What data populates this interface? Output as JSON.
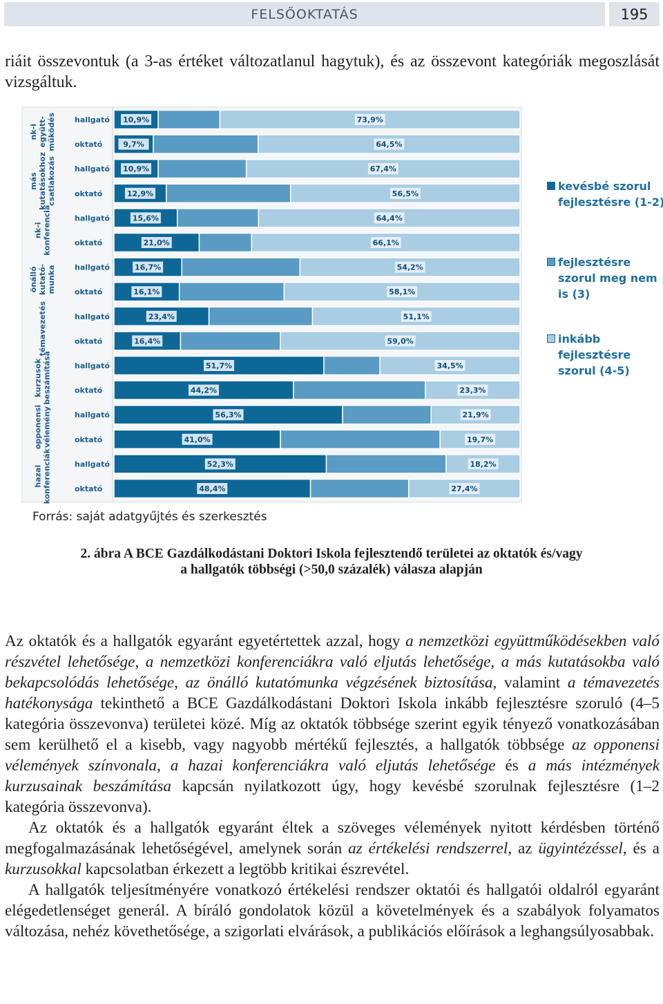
{
  "header": {
    "title": "FELSŐOKTATÁS",
    "page": "195"
  },
  "intro": "riáit összevontuk (a 3-as értéket változatlanul hagytuk), és az összevont kategóriák megoszlását vizsgáltuk.",
  "chart_data": {
    "type": "stacked-bar-horizontal",
    "categories": [
      "hallgató",
      "oktató",
      "hallgató",
      "oktató",
      "hallgató",
      "oktató",
      "hallgató",
      "oktató",
      "hallgató",
      "oktató",
      "hallgató",
      "oktató",
      "hallgató",
      "oktató",
      "hallgató",
      "oktató"
    ],
    "groups": [
      {
        "lines": [
          "nk-i",
          "együtt-",
          "működés"
        ]
      },
      {
        "lines": [
          "más",
          "kutatásokhoz",
          "csatlakozás"
        ]
      },
      {
        "lines": [
          "nk-i",
          "konferencia"
        ]
      },
      {
        "lines": [
          "önálló",
          "kutató-",
          "munka"
        ]
      },
      {
        "lines": [
          "témavezetés"
        ]
      },
      {
        "lines": [
          "kurzusok",
          "beszámítása"
        ]
      },
      {
        "lines": [
          "opponensi",
          "vélemény"
        ]
      },
      {
        "lines": [
          "hazai",
          "konferenciák"
        ]
      }
    ],
    "series": [
      {
        "name": "kevésbé szorul fejlesztésre (1-2)",
        "color": "#0d6898",
        "values": [
          10.9,
          9.7,
          10.9,
          12.9,
          15.6,
          21.0,
          16.7,
          16.1,
          23.4,
          16.4,
          51.7,
          44.2,
          56.3,
          41.0,
          52.3,
          48.4
        ],
        "value_labels": [
          "10,9%",
          "9,7%",
          "10,9%",
          "12,9%",
          "15,6%",
          "21,0%",
          "16,7%",
          "16,1%",
          "23,4%",
          "16,4%",
          "51,7%",
          "44,2%",
          "56,3%",
          "41,0%",
          "52,3%",
          "48,4%"
        ]
      },
      {
        "name": "fejlesztésre szorul meg nem is (3)",
        "color": "#5a9bc3",
        "values": [
          15.2,
          25.8,
          21.7,
          30.6,
          20.0,
          12.9,
          29.1,
          25.8,
          25.5,
          24.6,
          13.8,
          32.5,
          21.8,
          39.3,
          29.5,
          24.2
        ]
      },
      {
        "name": "inkább fejlesztésre szorul (4-5)",
        "color": "#a9cde3",
        "values": [
          73.9,
          64.5,
          67.4,
          56.5,
          64.4,
          66.1,
          54.2,
          58.1,
          51.1,
          59.0,
          34.5,
          23.3,
          21.9,
          19.7,
          18.2,
          27.4
        ],
        "value_labels": [
          "73,9%",
          "64,5%",
          "67,4%",
          "56,5%",
          "64,4%",
          "66,1%",
          "54,2%",
          "58,1%",
          "51,1%",
          "59,0%",
          "34,5%",
          "23,3%",
          "21,9%",
          "19,7%",
          "18,2%",
          "27,4%"
        ]
      }
    ]
  },
  "source": "Forrás: saját adatgyűjtés és szerkesztés",
  "caption": [
    "2. ábra A BCE Gazdálkodástani Doktori Iskola fejlesztendő területei az oktatók és/vagy",
    "a hallgatók többségi (>50,0 százalék) válasza alapján"
  ],
  "body": [
    [
      "Az oktatók és a hallgatók egyaránt egyetértettek azzal, hogy ",
      "a nemzetközi együttműködésekben való részvétel lehetősége, a nemzetközi konferenciákra való eljutás lehetősége, a más kutatásokba való bekapcsolódás lehetősége, az önálló kutatómunka végzésének biztosítása",
      ", valamint ",
      "a témavezetés hatékonysága",
      " tekinthető a BCE Gazdálkodástani Doktori Iskola inkább fejlesztésre szoruló (4–5 kategória összevonva) területei közé. Míg az oktatók többsége szerint egyik tényező vonatkozásában sem kerülhető el a kisebb, vagy nagyobb mértékű fejlesztés, a hallgatók többsége ",
      "az opponensi vélemények színvonala",
      ", ",
      "a hazai konferenciákra való eljutás lehetősége",
      " és ",
      "a más intézmények kurzusainak beszámítása",
      " kapcsán nyilatkozott úgy, hogy kevésbé szorulnak fejlesztésre (1–2 kategória összevonva)."
    ],
    [
      "Az oktatók és a hallgatók egyaránt éltek a szöveges vélemények nyitott kérdésben történő megfogalmazásának lehetőségével, amelynek során ",
      "az értékelési rendszerrel",
      ", az ",
      "ügyintézéssel",
      ", és a ",
      "kurzusokkal",
      " kapcsolatban érkezett a legtöbb kritikai észrevétel."
    ],
    [
      "A hallgatók teljesítményére vonatkozó értékelési rendszer oktatói és hallgatói oldalról egyaránt elégedetlenséget generál. A bíráló gondolatok közül a követelmények és a szabályok folyamatos változása, nehéz követhetősége, a szigorlati elvárások, a publikációs előírások a leghangsúlyosabbak."
    ]
  ]
}
